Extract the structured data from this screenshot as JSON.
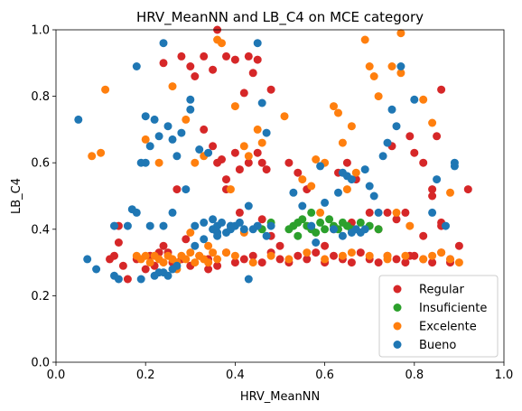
{
  "chart_data": {
    "type": "scatter",
    "title": "HRV_MeanNN and LB_C4 on MCE category",
    "xlabel": "HRV_MeanNN",
    "ylabel": "LB_C4",
    "xlim": [
      0.0,
      1.0
    ],
    "ylim": [
      0.0,
      1.0
    ],
    "xticks": [
      "0.0",
      "0.2",
      "0.4",
      "0.6",
      "0.8",
      "1.0"
    ],
    "yticks": [
      "0.0",
      "0.2",
      "0.4",
      "0.6",
      "0.8",
      "1.0"
    ],
    "grid": false,
    "legend_position": "lower-right",
    "series": [
      {
        "name": "Regular",
        "color": "#d62728",
        "points": [
          [
            0.14,
            0.41
          ],
          [
            0.14,
            0.36
          ],
          [
            0.12,
            0.31
          ],
          [
            0.13,
            0.32
          ],
          [
            0.15,
            0.29
          ],
          [
            0.16,
            0.25
          ],
          [
            0.18,
            0.31
          ],
          [
            0.2,
            0.28
          ],
          [
            0.22,
            0.29
          ],
          [
            0.24,
            0.35
          ],
          [
            0.25,
            0.33
          ],
          [
            0.26,
            0.3
          ],
          [
            0.28,
            0.31
          ],
          [
            0.3,
            0.29
          ],
          [
            0.32,
            0.32
          ],
          [
            0.34,
            0.31
          ],
          [
            0.36,
            0.29
          ],
          [
            0.38,
            0.33
          ],
          [
            0.4,
            0.3
          ],
          [
            0.42,
            0.31
          ],
          [
            0.44,
            0.32
          ],
          [
            0.46,
            0.3
          ],
          [
            0.48,
            0.33
          ],
          [
            0.5,
            0.31
          ],
          [
            0.52,
            0.3
          ],
          [
            0.54,
            0.32
          ],
          [
            0.56,
            0.31
          ],
          [
            0.58,
            0.33
          ],
          [
            0.6,
            0.3
          ],
          [
            0.62,
            0.32
          ],
          [
            0.64,
            0.31
          ],
          [
            0.66,
            0.3
          ],
          [
            0.68,
            0.33
          ],
          [
            0.7,
            0.31
          ],
          [
            0.72,
            0.3
          ],
          [
            0.74,
            0.32
          ],
          [
            0.76,
            0.31
          ],
          [
            0.78,
            0.3
          ],
          [
            0.8,
            0.32
          ],
          [
            0.82,
            0.31
          ],
          [
            0.84,
            0.3
          ],
          [
            0.86,
            0.33
          ],
          [
            0.88,
            0.31
          ],
          [
            0.9,
            0.35
          ],
          [
            0.24,
            0.9
          ],
          [
            0.28,
            0.92
          ],
          [
            0.3,
            0.89
          ],
          [
            0.31,
            0.86
          ],
          [
            0.33,
            0.92
          ],
          [
            0.35,
            0.88
          ],
          [
            0.36,
            1.0
          ],
          [
            0.38,
            0.92
          ],
          [
            0.4,
            0.91
          ],
          [
            0.43,
            0.92
          ],
          [
            0.45,
            0.91
          ],
          [
            0.48,
            0.82
          ],
          [
            0.42,
            0.81
          ],
          [
            0.44,
            0.87
          ],
          [
            0.33,
            0.7
          ],
          [
            0.35,
            0.65
          ],
          [
            0.36,
            0.6
          ],
          [
            0.37,
            0.61
          ],
          [
            0.38,
            0.55
          ],
          [
            0.4,
            0.63
          ],
          [
            0.41,
            0.58
          ],
          [
            0.43,
            0.6
          ],
          [
            0.45,
            0.63
          ],
          [
            0.46,
            0.6
          ],
          [
            0.47,
            0.58
          ],
          [
            0.52,
            0.6
          ],
          [
            0.54,
            0.57
          ],
          [
            0.56,
            0.52
          ],
          [
            0.63,
            0.57
          ],
          [
            0.65,
            0.6
          ],
          [
            0.67,
            0.55
          ],
          [
            0.7,
            0.45
          ],
          [
            0.72,
            0.4
          ],
          [
            0.74,
            0.45
          ],
          [
            0.76,
            0.43
          ],
          [
            0.78,
            0.45
          ],
          [
            0.79,
            0.68
          ],
          [
            0.8,
            0.63
          ],
          [
            0.82,
            0.6
          ],
          [
            0.84,
            0.52
          ],
          [
            0.85,
            0.68
          ],
          [
            0.86,
            0.82
          ],
          [
            0.84,
            0.5
          ],
          [
            0.82,
            0.38
          ],
          [
            0.86,
            0.42
          ],
          [
            0.88,
            0.3
          ],
          [
            0.92,
            0.52
          ],
          [
            0.75,
            0.65
          ],
          [
            0.6,
            0.35
          ],
          [
            0.5,
            0.35
          ],
          [
            0.34,
            0.28
          ],
          [
            0.29,
            0.37
          ],
          [
            0.27,
            0.52
          ],
          [
            0.38,
            0.52
          ],
          [
            0.41,
            0.45
          ],
          [
            0.46,
            0.43
          ],
          [
            0.48,
            0.38
          ],
          [
            0.62,
            0.4
          ],
          [
            0.66,
            0.42
          ],
          [
            0.79,
            0.32
          ],
          [
            0.86,
            0.41
          ],
          [
            0.23,
            0.33
          ],
          [
            0.21,
            0.32
          ]
        ]
      },
      {
        "name": "Insuficiente",
        "color": "#2ca02c",
        "points": [
          [
            0.46,
            0.4
          ],
          [
            0.48,
            0.42
          ],
          [
            0.52,
            0.4
          ],
          [
            0.54,
            0.42
          ],
          [
            0.55,
            0.43
          ],
          [
            0.56,
            0.41
          ],
          [
            0.57,
            0.4
          ],
          [
            0.58,
            0.39
          ],
          [
            0.59,
            0.42
          ],
          [
            0.6,
            0.4
          ],
          [
            0.61,
            0.43
          ],
          [
            0.62,
            0.41
          ],
          [
            0.63,
            0.4
          ],
          [
            0.64,
            0.42
          ],
          [
            0.65,
            0.41
          ],
          [
            0.66,
            0.4
          ],
          [
            0.68,
            0.42
          ],
          [
            0.7,
            0.41
          ],
          [
            0.72,
            0.4
          ],
          [
            0.54,
            0.38
          ],
          [
            0.57,
            0.45
          ],
          [
            0.53,
            0.41
          ]
        ]
      },
      {
        "name": "Excelente",
        "color": "#ff7f0e",
        "points": [
          [
            0.08,
            0.62
          ],
          [
            0.1,
            0.63
          ],
          [
            0.11,
            0.82
          ],
          [
            0.18,
            0.32
          ],
          [
            0.19,
            0.31
          ],
          [
            0.2,
            0.32
          ],
          [
            0.21,
            0.3
          ],
          [
            0.22,
            0.32
          ],
          [
            0.23,
            0.31
          ],
          [
            0.24,
            0.3
          ],
          [
            0.25,
            0.32
          ],
          [
            0.26,
            0.31
          ],
          [
            0.27,
            0.3
          ],
          [
            0.28,
            0.32
          ],
          [
            0.29,
            0.31
          ],
          [
            0.3,
            0.33
          ],
          [
            0.31,
            0.3
          ],
          [
            0.32,
            0.32
          ],
          [
            0.33,
            0.31
          ],
          [
            0.34,
            0.3
          ],
          [
            0.35,
            0.33
          ],
          [
            0.36,
            0.31
          ],
          [
            0.4,
            0.32
          ],
          [
            0.44,
            0.3
          ],
          [
            0.48,
            0.32
          ],
          [
            0.52,
            0.31
          ],
          [
            0.56,
            0.33
          ],
          [
            0.6,
            0.31
          ],
          [
            0.64,
            0.32
          ],
          [
            0.66,
            0.33
          ],
          [
            0.7,
            0.32
          ],
          [
            0.74,
            0.31
          ],
          [
            0.78,
            0.32
          ],
          [
            0.82,
            0.31
          ],
          [
            0.84,
            0.32
          ],
          [
            0.86,
            0.33
          ],
          [
            0.88,
            0.31
          ],
          [
            0.9,
            0.3
          ],
          [
            0.2,
            0.67
          ],
          [
            0.23,
            0.6
          ],
          [
            0.26,
            0.83
          ],
          [
            0.29,
            0.73
          ],
          [
            0.31,
            0.6
          ],
          [
            0.33,
            0.62
          ],
          [
            0.36,
            0.97
          ],
          [
            0.37,
            0.96
          ],
          [
            0.4,
            0.77
          ],
          [
            0.42,
            0.65
          ],
          [
            0.45,
            0.7
          ],
          [
            0.46,
            0.66
          ],
          [
            0.51,
            0.74
          ],
          [
            0.55,
            0.55
          ],
          [
            0.57,
            0.53
          ],
          [
            0.58,
            0.61
          ],
          [
            0.6,
            0.6
          ],
          [
            0.62,
            0.77
          ],
          [
            0.63,
            0.75
          ],
          [
            0.64,
            0.66
          ],
          [
            0.66,
            0.71
          ],
          [
            0.67,
            0.57
          ],
          [
            0.69,
            0.97
          ],
          [
            0.7,
            0.89
          ],
          [
            0.71,
            0.86
          ],
          [
            0.72,
            0.8
          ],
          [
            0.75,
            0.89
          ],
          [
            0.77,
            0.87
          ],
          [
            0.77,
            0.99
          ],
          [
            0.82,
            0.79
          ],
          [
            0.88,
            0.51
          ],
          [
            0.84,
            0.72
          ],
          [
            0.76,
            0.45
          ],
          [
            0.79,
            0.41
          ],
          [
            0.59,
            0.45
          ],
          [
            0.42,
            0.39
          ],
          [
            0.38,
            0.33
          ],
          [
            0.34,
            0.35
          ],
          [
            0.3,
            0.39
          ],
          [
            0.27,
            0.28
          ],
          [
            0.43,
            0.62
          ],
          [
            0.39,
            0.52
          ],
          [
            0.65,
            0.52
          ],
          [
            0.74,
            0.32
          ]
        ]
      },
      {
        "name": "Bueno",
        "color": "#1f77b4",
        "points": [
          [
            0.05,
            0.73
          ],
          [
            0.07,
            0.31
          ],
          [
            0.09,
            0.28
          ],
          [
            0.13,
            0.26
          ],
          [
            0.13,
            0.41
          ],
          [
            0.17,
            0.46
          ],
          [
            0.18,
            0.45
          ],
          [
            0.18,
            0.89
          ],
          [
            0.19,
            0.6
          ],
          [
            0.2,
            0.6
          ],
          [
            0.2,
            0.74
          ],
          [
            0.21,
            0.65
          ],
          [
            0.21,
            0.41
          ],
          [
            0.22,
            0.73
          ],
          [
            0.23,
            0.68
          ],
          [
            0.23,
            0.27
          ],
          [
            0.24,
            0.96
          ],
          [
            0.24,
            0.41
          ],
          [
            0.25,
            0.71
          ],
          [
            0.26,
            0.67
          ],
          [
            0.26,
            0.45
          ],
          [
            0.27,
            0.29
          ],
          [
            0.27,
            0.62
          ],
          [
            0.28,
            0.69
          ],
          [
            0.29,
            0.52
          ],
          [
            0.3,
            0.79
          ],
          [
            0.3,
            0.76
          ],
          [
            0.31,
            0.41
          ],
          [
            0.32,
            0.64
          ],
          [
            0.33,
            0.37
          ],
          [
            0.34,
            0.63
          ],
          [
            0.35,
            0.4
          ],
          [
            0.35,
            0.43
          ],
          [
            0.36,
            0.39
          ],
          [
            0.36,
            0.41
          ],
          [
            0.37,
            0.42
          ],
          [
            0.38,
            0.39
          ],
          [
            0.39,
            0.4
          ],
          [
            0.4,
            0.41
          ],
          [
            0.41,
            0.42
          ],
          [
            0.42,
            0.4
          ],
          [
            0.43,
            0.47
          ],
          [
            0.43,
            0.25
          ],
          [
            0.44,
            0.4
          ],
          [
            0.45,
            0.41
          ],
          [
            0.46,
            0.78
          ],
          [
            0.45,
            0.96
          ],
          [
            0.47,
            0.69
          ],
          [
            0.48,
            0.41
          ],
          [
            0.53,
            0.51
          ],
          [
            0.55,
            0.47
          ],
          [
            0.57,
            0.41
          ],
          [
            0.58,
            0.36
          ],
          [
            0.59,
            0.59
          ],
          [
            0.6,
            0.48
          ],
          [
            0.62,
            0.4
          ],
          [
            0.63,
            0.51
          ],
          [
            0.64,
            0.57
          ],
          [
            0.65,
            0.56
          ],
          [
            0.66,
            0.55
          ],
          [
            0.67,
            0.4
          ],
          [
            0.68,
            0.39
          ],
          [
            0.69,
            0.58
          ],
          [
            0.7,
            0.53
          ],
          [
            0.71,
            0.5
          ],
          [
            0.72,
            0.45
          ],
          [
            0.73,
            0.62
          ],
          [
            0.74,
            0.66
          ],
          [
            0.75,
            0.76
          ],
          [
            0.76,
            0.71
          ],
          [
            0.77,
            0.89
          ],
          [
            0.8,
            0.79
          ],
          [
            0.84,
            0.45
          ],
          [
            0.85,
            0.55
          ],
          [
            0.87,
            0.41
          ],
          [
            0.89,
            0.59
          ],
          [
            0.89,
            0.6
          ],
          [
            0.22,
            0.26
          ],
          [
            0.24,
            0.27
          ],
          [
            0.25,
            0.26
          ],
          [
            0.26,
            0.28
          ],
          [
            0.31,
            0.35
          ],
          [
            0.33,
            0.42
          ],
          [
            0.36,
            0.38
          ],
          [
            0.39,
            0.41
          ],
          [
            0.47,
            0.38
          ],
          [
            0.64,
            0.38
          ],
          [
            0.66,
            0.39
          ],
          [
            0.69,
            0.4
          ],
          [
            0.14,
            0.25
          ],
          [
            0.19,
            0.25
          ],
          [
            0.16,
            0.41
          ]
        ]
      }
    ]
  }
}
